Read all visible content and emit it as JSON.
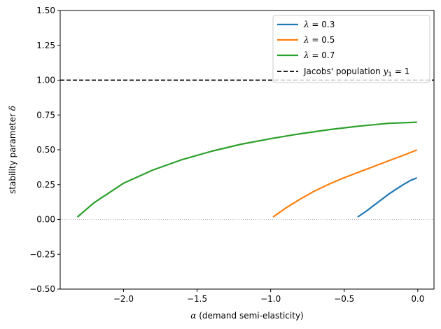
{
  "chart_data": {
    "type": "line",
    "title": "",
    "xlabel_symbol": "α",
    "xlabel_text": " (demand semi-elasticity)",
    "ylabel_text": "stability parameter ",
    "ylabel_symbol": "δ",
    "xlim": [
      -2.43,
      0.11
    ],
    "ylim": [
      -0.5,
      1.5
    ],
    "xticks": [
      -2.0,
      -1.5,
      -1.0,
      -0.5,
      0.0
    ],
    "xtick_labels": [
      "−2.0",
      "−1.5",
      "−1.0",
      "−0.5",
      "0.0"
    ],
    "yticks": [
      -0.5,
      -0.25,
      0.0,
      0.25,
      0.5,
      0.75,
      1.0,
      1.25,
      1.5
    ],
    "ytick_labels": [
      "−0.50",
      "−0.25",
      "0.00",
      "0.25",
      "0.50",
      "0.75",
      "1.00",
      "1.25",
      "1.50"
    ],
    "hlines": [
      {
        "name": "Jacobs' population",
        "y": 1.0,
        "style": "dashed",
        "color": "#000000"
      },
      {
        "name": "zero",
        "y": 0.0,
        "style": "dotted",
        "color": "#999999"
      }
    ],
    "series": [
      {
        "name": "λ = 0.3",
        "legend_symbol": "λ",
        "legend_rest": " = 0.3",
        "color": "#1f77b4",
        "x": [
          -0.405,
          -0.35,
          -0.3,
          -0.25,
          -0.2,
          -0.15,
          -0.1,
          -0.05,
          -0.01
        ],
        "y": [
          0.02,
          0.06,
          0.1,
          0.14,
          0.18,
          0.215,
          0.25,
          0.28,
          0.297
        ]
      },
      {
        "name": "λ = 0.5",
        "legend_symbol": "λ",
        "legend_rest": " = 0.5",
        "color": "#ff7f0e",
        "x": [
          -0.98,
          -0.9,
          -0.8,
          -0.7,
          -0.6,
          -0.5,
          -0.4,
          -0.3,
          -0.2,
          -0.1,
          -0.01
        ],
        "y": [
          0.02,
          0.08,
          0.145,
          0.205,
          0.255,
          0.3,
          0.34,
          0.38,
          0.42,
          0.46,
          0.497
        ]
      },
      {
        "name": "λ = 0.7",
        "legend_symbol": "λ",
        "legend_rest": " = 0.7",
        "color": "#2ca02c",
        "x": [
          -2.31,
          -2.2,
          -2.0,
          -1.8,
          -1.6,
          -1.4,
          -1.2,
          -1.0,
          -0.8,
          -0.6,
          -0.4,
          -0.2,
          -0.01
        ],
        "y": [
          0.02,
          0.12,
          0.26,
          0.355,
          0.43,
          0.49,
          0.54,
          0.58,
          0.615,
          0.645,
          0.67,
          0.69,
          0.698
        ]
      }
    ],
    "legend_jacobs_text": "Jacobs' population ",
    "legend_jacobs_symbol": "y",
    "legend_jacobs_sub": "1",
    "legend_jacobs_rest": " = 1",
    "legend_position": "top-right"
  }
}
